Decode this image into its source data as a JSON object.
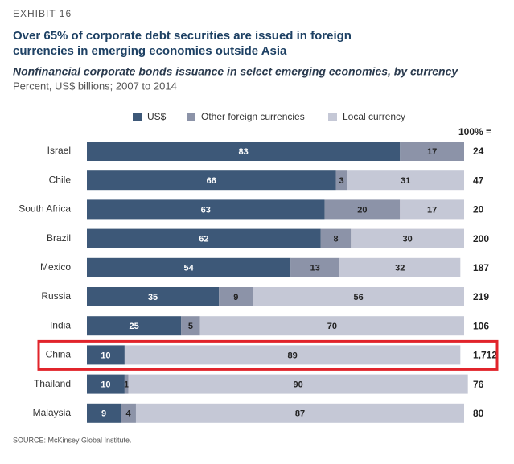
{
  "chart_data": {
    "type": "stacked-bar-horizontal",
    "exhibit": "EXHIBIT 16",
    "title": [
      "Over 65% of corporate debt securities are issued in foreign",
      "currencies in emerging economies outside Asia"
    ],
    "subtitle": "Nonfinancial corporate bonds issuance in select emerging economies, by currency",
    "units": "Percent, US$ billions; 2007 to 2014",
    "source": "SOURCE: McKinsey Global Institute.",
    "categories": [
      "Israel",
      "Chile",
      "South Africa",
      "Brazil",
      "Mexico",
      "Russia",
      "India",
      "China",
      "Thailand",
      "Malaysia"
    ],
    "series": [
      {
        "name": "US$",
        "color": "#3d5878",
        "label_color": "#ffffff",
        "values": [
          83,
          66,
          63,
          62,
          54,
          35,
          25,
          10,
          10,
          9
        ]
      },
      {
        "name": "Other foreign currencies",
        "color": "#8c93a8",
        "label_color": "#222222",
        "values": [
          17,
          3,
          20,
          8,
          13,
          9,
          5,
          null,
          1,
          4
        ]
      },
      {
        "name": "Local currency",
        "color": "#c5c8d6",
        "label_color": "#222222",
        "values": [
          null,
          31,
          17,
          30,
          32,
          56,
          70,
          89,
          90,
          87
        ]
      }
    ],
    "xlim": [
      0,
      100
    ],
    "totals": {
      "header": "100% =",
      "values": [
        24,
        47,
        20,
        200,
        187,
        219,
        106,
        1712,
        76,
        80
      ],
      "value_labels": [
        "24",
        "47",
        "20",
        "200",
        "187",
        "219",
        "106",
        "1,712",
        "76",
        "80"
      ]
    },
    "highlight": "China",
    "highlight_color": "#e1242b"
  }
}
